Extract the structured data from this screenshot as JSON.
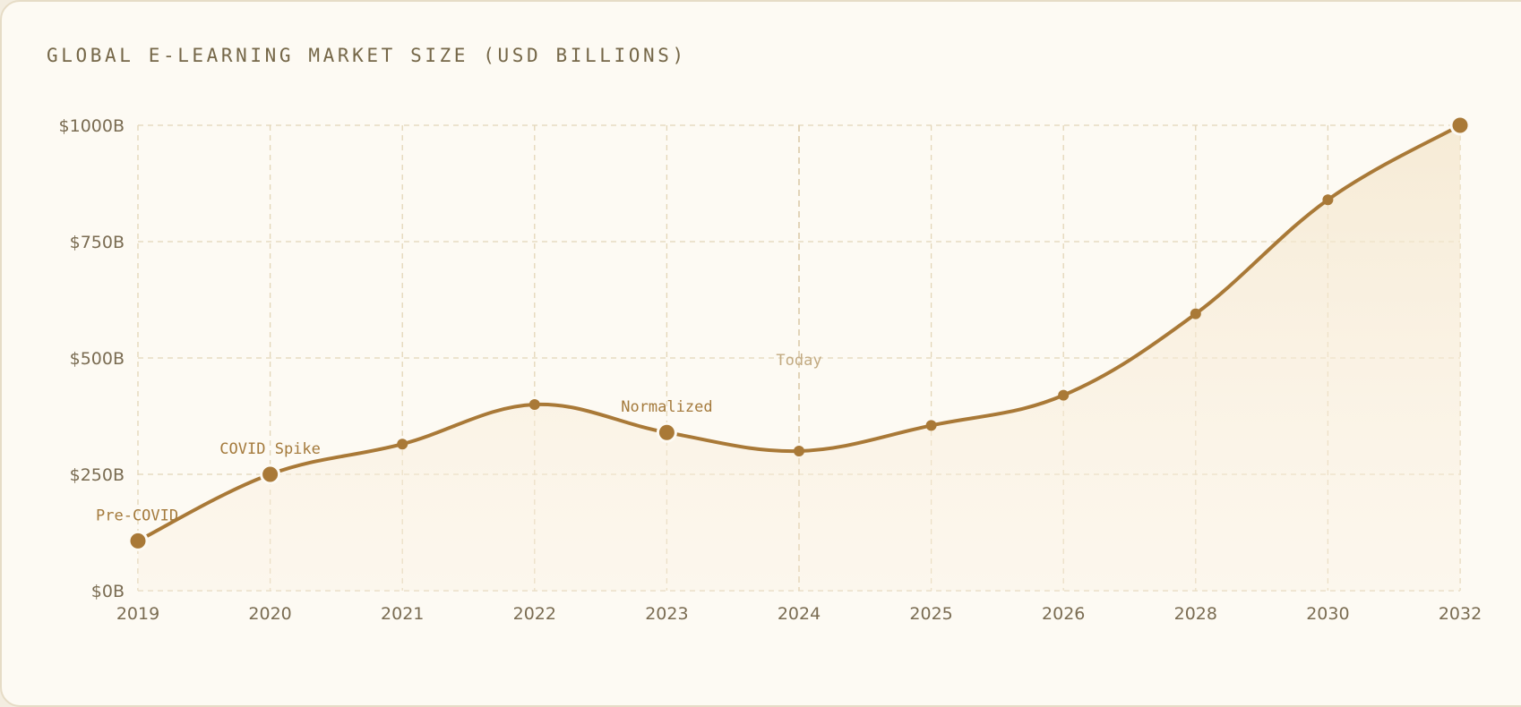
{
  "chart_data": {
    "type": "line",
    "title": "GLOBAL E-LEARNING MARKET SIZE (USD BILLIONS)",
    "categories": [
      "2019",
      "2020",
      "2021",
      "2022",
      "2023",
      "2024",
      "2025",
      "2026",
      "2028",
      "2030",
      "2032"
    ],
    "series": [
      {
        "name": "Global E-Learning Market Size",
        "values": [
          107,
          250,
          315,
          400,
          340,
          300,
          355,
          420,
          595,
          840,
          1000
        ]
      }
    ],
    "y_ticks": [
      "$0B",
      "$250B",
      "$500B",
      "$750B",
      "$1000B"
    ],
    "y_tick_values": [
      0,
      250,
      500,
      750,
      1000
    ],
    "ylim": [
      0,
      1000
    ],
    "xlabel": "",
    "ylabel": "",
    "grid": true,
    "annotations": [
      {
        "label": "Pre-COVID",
        "category": "2019"
      },
      {
        "label": "COVID Spike",
        "category": "2020"
      },
      {
        "label": "Normalized",
        "category": "2023"
      }
    ],
    "reference_line": {
      "label": "Today",
      "category": "2024"
    },
    "colors": {
      "line": "#a97937",
      "grid": "#e3d5b7",
      "reference": "#dccbaa",
      "fill": "#f4e6cc"
    }
  }
}
